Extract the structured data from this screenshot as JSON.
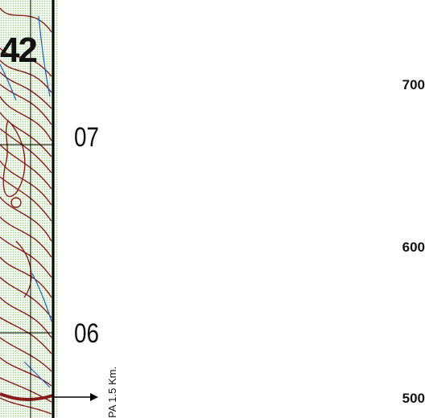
{
  "map": {
    "sheet_number": "42",
    "grid_northings": [
      "07",
      "06"
    ],
    "contour_elevations": [
      "700",
      "600",
      "500"
    ],
    "road_note": "PA 1.5 Km.",
    "colors": {
      "contour": "#8b1a1a",
      "vegetation": "#cfe8c4",
      "water": "#1e5fbf",
      "gridline": "#000000"
    }
  }
}
